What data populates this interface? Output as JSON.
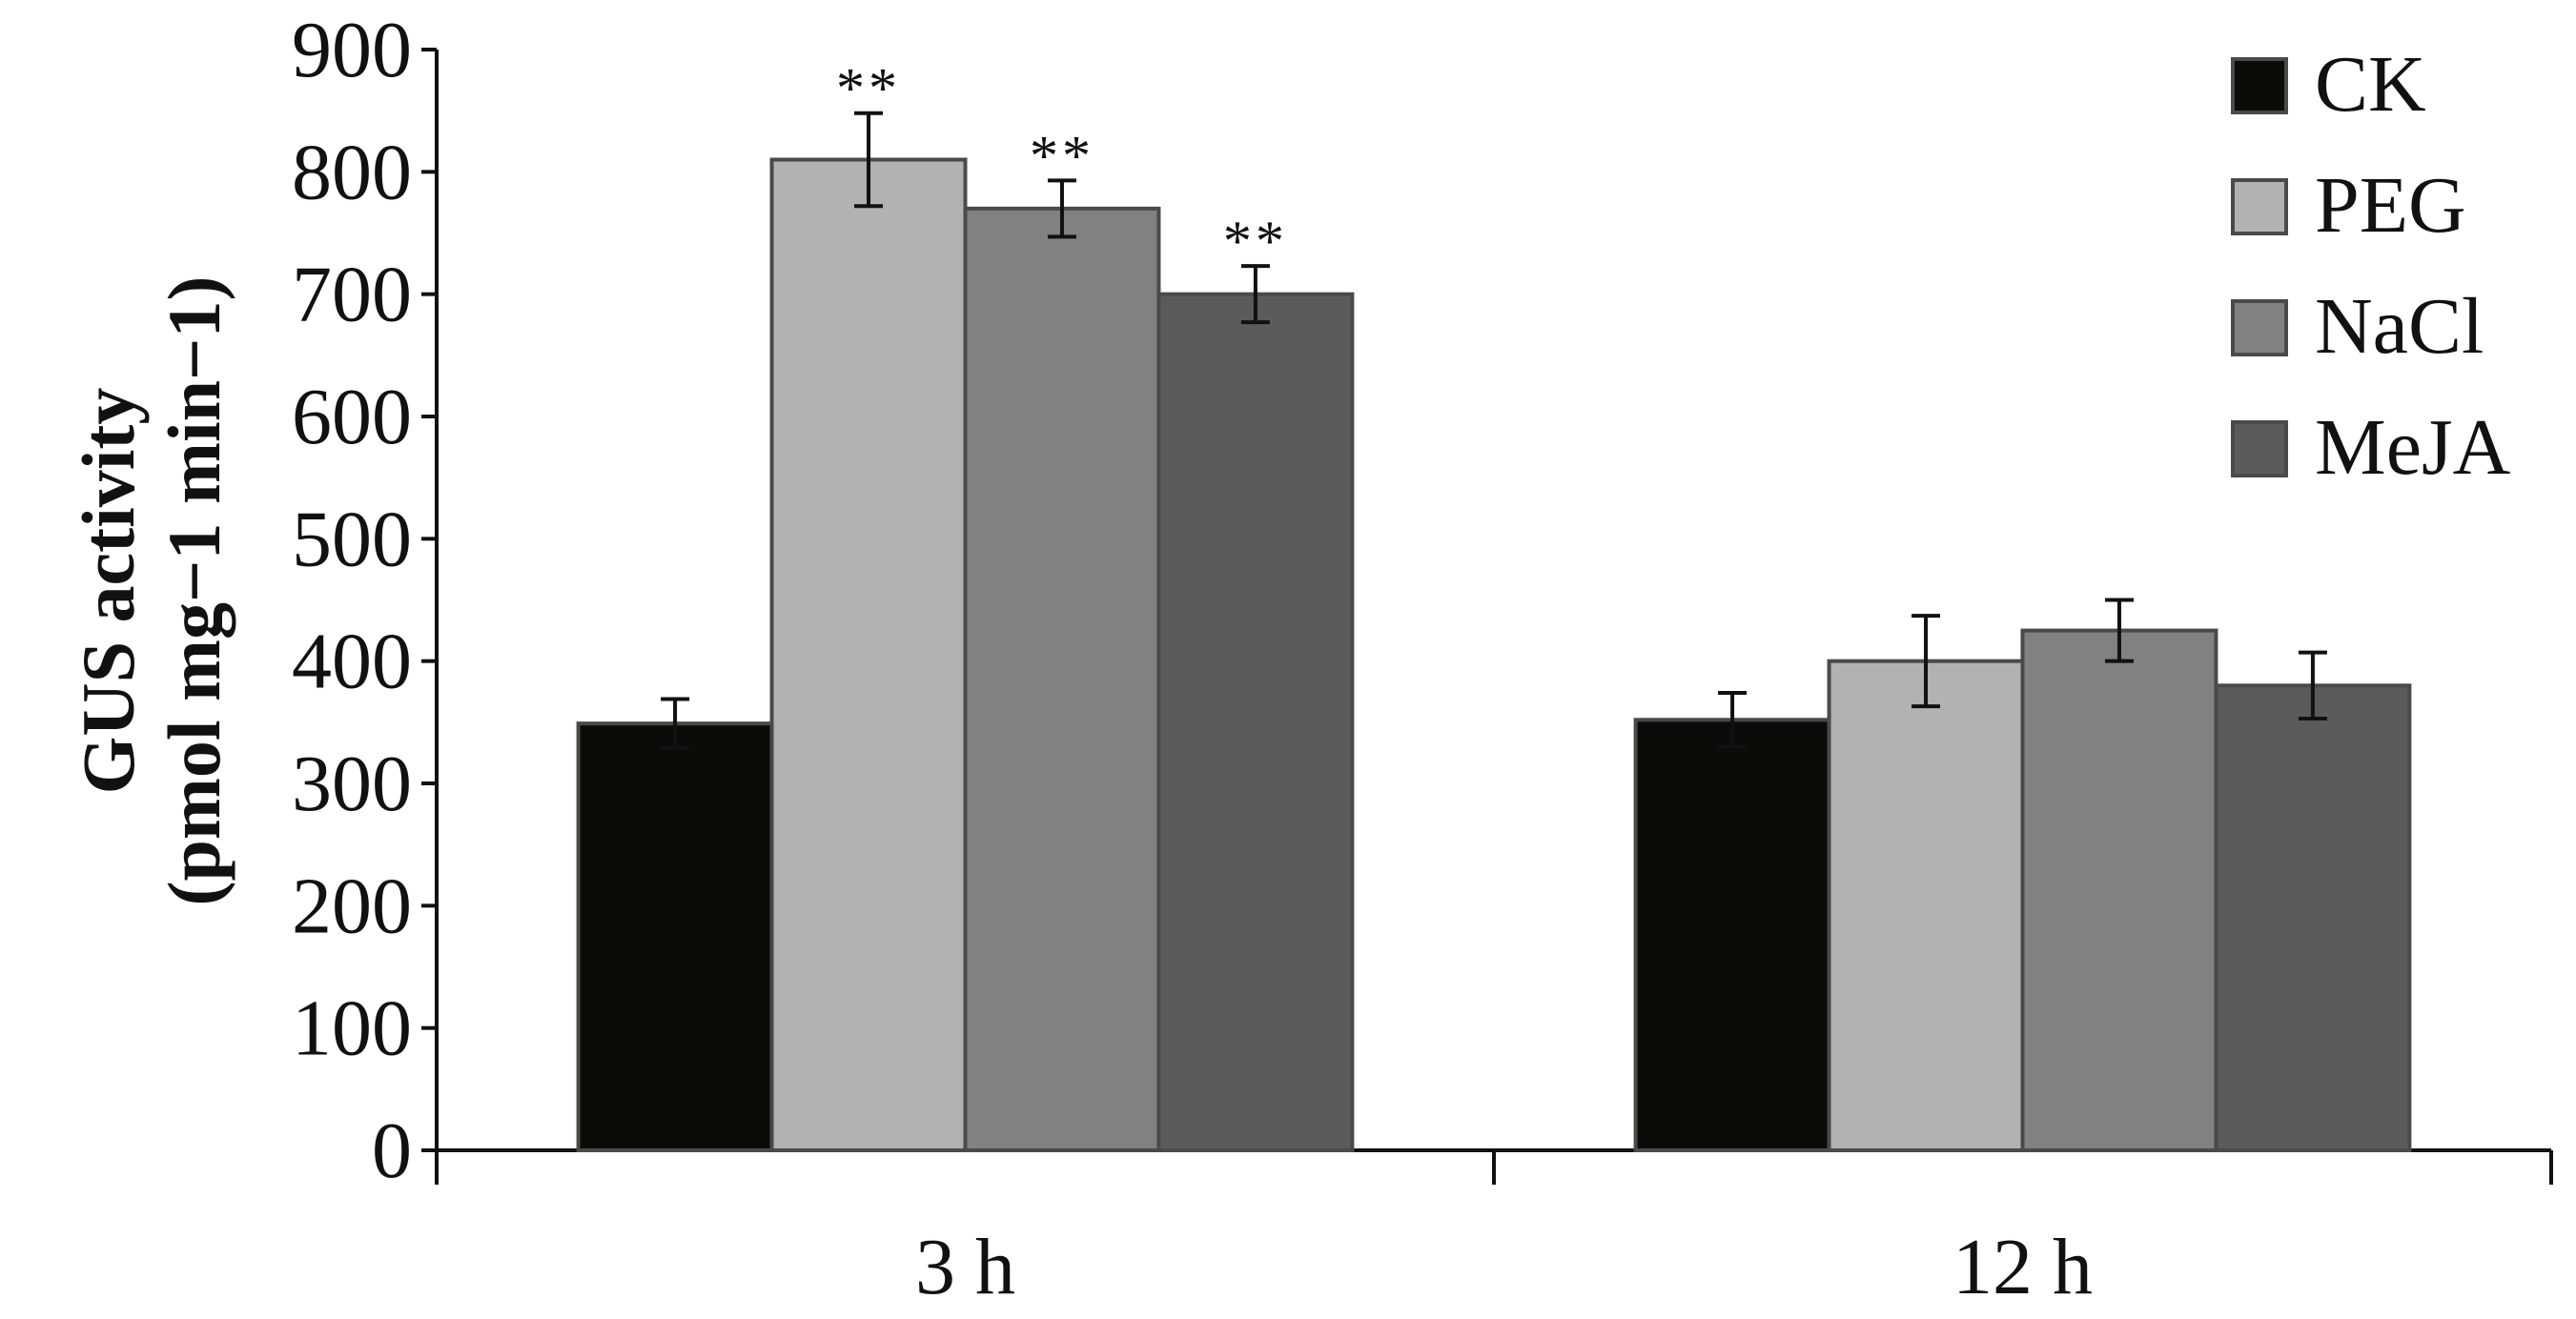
{
  "chart_data": {
    "type": "bar",
    "categories": [
      "3 h",
      "12 h"
    ],
    "series": [
      {
        "name": "CK",
        "color": "#0b0b08",
        "values": [
          349,
          352
        ],
        "errors": [
          20,
          22
        ]
      },
      {
        "name": "PEG",
        "color": "#b2b2b2",
        "values": [
          810,
          400
        ],
        "errors": [
          38,
          37
        ]
      },
      {
        "name": "NaCl",
        "color": "#808180",
        "values": [
          770,
          425
        ],
        "errors": [
          23,
          25
        ]
      },
      {
        "name": "MeJA",
        "color": "#5a5b5a",
        "values": [
          700,
          380
        ],
        "errors": [
          23,
          27
        ]
      }
    ],
    "significance": [
      {
        "category": "3 h",
        "series": "PEG",
        "label": "**"
      },
      {
        "category": "3 h",
        "series": "NaCl",
        "label": "**"
      },
      {
        "category": "3 h",
        "series": "MeJA",
        "label": "**"
      }
    ],
    "title": "",
    "xlabel": "",
    "ylabel": [
      "GUS activity",
      "(pmol mg−1 min−1)"
    ],
    "ylim": [
      0,
      900
    ],
    "yticks": [
      0,
      100,
      200,
      300,
      400,
      500,
      600,
      700,
      800,
      900
    ],
    "grid": false,
    "legend_position": "top-right",
    "error_bars": true
  }
}
